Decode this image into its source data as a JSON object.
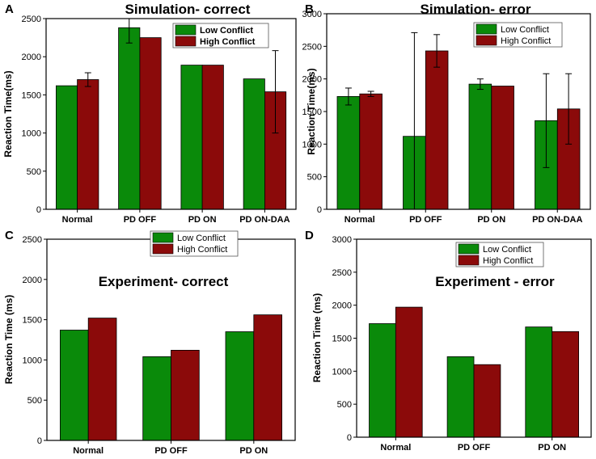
{
  "chart_data": [
    {
      "type": "bar",
      "panel": "A",
      "title": "Simulation- correct",
      "ylabel": "Reaction Time(ms)",
      "xlabel": "",
      "ylim": [
        0,
        2500
      ],
      "yticks": [
        0,
        500,
        1000,
        1500,
        2000,
        2500
      ],
      "categories": [
        "Normal",
        "PD OFF",
        "PD ON",
        "PD ON-DAA"
      ],
      "series": [
        {
          "name": "Low Conflict",
          "color": "#0a8a0a",
          "values": [
            1620,
            2380,
            1890,
            1710
          ],
          "errors": [
            null,
            200,
            null,
            null
          ]
        },
        {
          "name": "High Conflict",
          "color": "#8b0a0a",
          "values": [
            1700,
            2250,
            1890,
            1540
          ],
          "errors": [
            90,
            null,
            null,
            540
          ]
        }
      ],
      "legend_bold": true
    },
    {
      "type": "bar",
      "panel": "B",
      "title": "Simulation- error",
      "ylabel": "Reaction Time(ms)",
      "xlabel": "",
      "ylim": [
        0,
        3000
      ],
      "yticks": [
        0,
        500,
        1000,
        1500,
        2000,
        2500,
        3000
      ],
      "categories": [
        "Normal",
        "PD OFF",
        "PD ON",
        "PD ON-DAA"
      ],
      "series": [
        {
          "name": "Low Conflict",
          "color": "#0a8a0a",
          "values": [
            1730,
            1120,
            1920,
            1360
          ],
          "errors": [
            130,
            1590,
            80,
            720
          ]
        },
        {
          "name": "High Conflict",
          "color": "#8b0a0a",
          "values": [
            1770,
            2430,
            1890,
            1540
          ],
          "errors": [
            40,
            250,
            null,
            540
          ]
        }
      ],
      "legend_bold": false
    },
    {
      "type": "bar",
      "panel": "C",
      "title": "Experiment- correct",
      "ylabel": "Reaction Time (ms)",
      "xlabel": "",
      "ylim": [
        0,
        2500
      ],
      "yticks": [
        0,
        500,
        1000,
        1500,
        2000,
        2500
      ],
      "categories": [
        "Normal",
        "PD OFF",
        "PD ON"
      ],
      "series": [
        {
          "name": "Low Conflict",
          "color": "#0a8a0a",
          "values": [
            1370,
            1040,
            1350
          ]
        },
        {
          "name": "High Conflict",
          "color": "#8b0a0a",
          "values": [
            1520,
            1120,
            1560
          ]
        }
      ],
      "legend_bold": false
    },
    {
      "type": "bar",
      "panel": "D",
      "title": "Experiment - error",
      "ylabel": "Reaction Time (ms)",
      "xlabel": "",
      "ylim": [
        0,
        3000
      ],
      "yticks": [
        0,
        500,
        1000,
        1500,
        2000,
        2500,
        3000
      ],
      "categories": [
        "Normal",
        "PD OFF",
        "PD ON"
      ],
      "series": [
        {
          "name": "Low Conflict",
          "color": "#0a8a0a",
          "values": [
            1720,
            1220,
            1670
          ]
        },
        {
          "name": "High Conflict",
          "color": "#8b0a0a",
          "values": [
            1970,
            1100,
            1600
          ]
        }
      ],
      "legend_bold": false
    }
  ]
}
